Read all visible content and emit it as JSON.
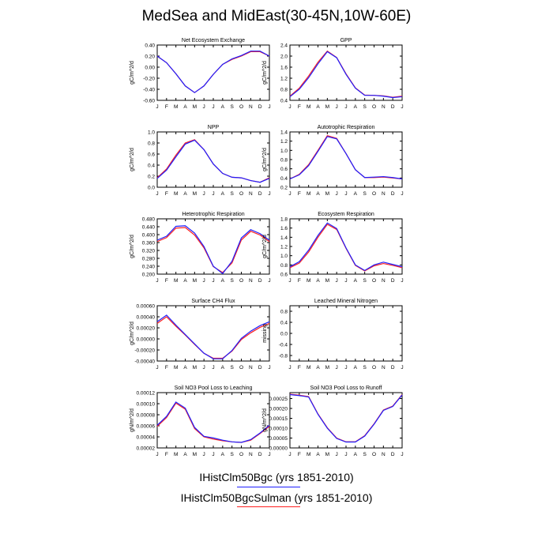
{
  "title": "MedSea and MidEast(30-45N,10W-60E)",
  "months": [
    "J",
    "F",
    "M",
    "A",
    "M",
    "J",
    "J",
    "A",
    "S",
    "O",
    "N",
    "D",
    "J"
  ],
  "legend": [
    {
      "label": "IHistClm50Bgc (yrs 1851-2010)",
      "color": "#1f1fff"
    },
    {
      "label": "IHistClm50BgcSulman (yrs 1851-2010)",
      "color": "#ff2020"
    }
  ],
  "chart_data": [
    {
      "type": "line",
      "title": "Net Ecosystem Exchange",
      "ylabel": "gC/m^2/d",
      "ylim": [
        -0.6,
        0.4
      ],
      "yticks": [
        "0.40",
        "0.20",
        "0.00",
        "-0.20",
        "-0.40",
        "-0.60"
      ],
      "series": [
        {
          "color": "#1f1fff",
          "values": [
            0.2,
            0.08,
            -0.12,
            -0.34,
            -0.46,
            -0.34,
            -0.13,
            0.05,
            0.15,
            0.21,
            0.29,
            0.29,
            0.2
          ]
        },
        {
          "color": "#ff2020",
          "values": [
            0.2,
            0.08,
            -0.12,
            -0.34,
            -0.46,
            -0.34,
            -0.13,
            0.05,
            0.14,
            0.2,
            0.28,
            0.28,
            0.2
          ]
        }
      ]
    },
    {
      "type": "line",
      "title": "GPP",
      "ylabel": "gC/m^2/d",
      "ylim": [
        0.4,
        2.4
      ],
      "yticks": [
        "2.4",
        "2.0",
        "1.6",
        "1.2",
        "0.8",
        "0.4"
      ],
      "series": [
        {
          "color": "#1f1fff",
          "values": [
            0.53,
            0.8,
            1.22,
            1.72,
            2.16,
            1.94,
            1.34,
            0.84,
            0.58,
            0.58,
            0.55,
            0.5,
            0.53
          ]
        },
        {
          "color": "#ff2020",
          "values": [
            0.55,
            0.84,
            1.28,
            1.78,
            2.18,
            1.95,
            1.36,
            0.85,
            0.59,
            0.58,
            0.56,
            0.51,
            0.55
          ]
        }
      ]
    },
    {
      "type": "line",
      "title": "NPP",
      "ylabel": "gC/m^2/d",
      "ylim": [
        0.0,
        1.0
      ],
      "yticks": [
        "1.0",
        "0.8",
        "0.6",
        "0.4",
        "0.2",
        "0.0"
      ],
      "series": [
        {
          "color": "#1f1fff",
          "values": [
            0.16,
            0.31,
            0.55,
            0.78,
            0.85,
            0.68,
            0.42,
            0.25,
            0.18,
            0.17,
            0.12,
            0.09,
            0.16
          ]
        },
        {
          "color": "#ff2020",
          "values": [
            0.17,
            0.33,
            0.58,
            0.8,
            0.86,
            0.68,
            0.42,
            0.25,
            0.18,
            0.17,
            0.12,
            0.09,
            0.17
          ]
        }
      ]
    },
    {
      "type": "line",
      "title": "Autotrophic Respiration",
      "ylabel": "gC/m^2/d",
      "ylim": [
        0.2,
        1.4
      ],
      "yticks": [
        "1.4",
        "1.2",
        "1.0",
        "0.8",
        "0.6",
        "0.4",
        "0.2"
      ],
      "series": [
        {
          "color": "#1f1fff",
          "values": [
            0.38,
            0.47,
            0.67,
            0.98,
            1.3,
            1.25,
            0.93,
            0.58,
            0.41,
            0.42,
            0.43,
            0.41,
            0.38
          ]
        },
        {
          "color": "#ff2020",
          "values": [
            0.38,
            0.48,
            0.69,
            1.0,
            1.32,
            1.26,
            0.93,
            0.58,
            0.41,
            0.41,
            0.42,
            0.4,
            0.38
          ]
        }
      ]
    },
    {
      "type": "line",
      "title": "Heterotrophic Respiration",
      "ylabel": "gC/m^2/d",
      "ylim": [
        0.2,
        0.48
      ],
      "yticks": [
        "0.480",
        "0.440",
        "0.400",
        "0.360",
        "0.320",
        "0.280",
        "0.240",
        "0.200"
      ],
      "series": [
        {
          "color": "#1f1fff",
          "values": [
            0.372,
            0.392,
            0.442,
            0.445,
            0.408,
            0.34,
            0.24,
            0.203,
            0.265,
            0.383,
            0.425,
            0.405,
            0.372
          ]
        },
        {
          "color": "#ff2020",
          "values": [
            0.365,
            0.385,
            0.433,
            0.436,
            0.398,
            0.333,
            0.238,
            0.208,
            0.257,
            0.373,
            0.417,
            0.398,
            0.365
          ]
        }
      ]
    },
    {
      "type": "line",
      "title": "Ecosystem Respiration",
      "ylabel": "gC/m^2/d",
      "ylim": [
        0.6,
        1.8
      ],
      "yticks": [
        "1.8",
        "1.6",
        "1.4",
        "1.2",
        "1.0",
        "0.8",
        "0.6"
      ],
      "series": [
        {
          "color": "#1f1fff",
          "values": [
            0.76,
            0.87,
            1.12,
            1.44,
            1.71,
            1.59,
            1.17,
            0.8,
            0.68,
            0.8,
            0.86,
            0.81,
            0.76
          ]
        },
        {
          "color": "#ff2020",
          "values": [
            0.74,
            0.84,
            1.08,
            1.4,
            1.68,
            1.57,
            1.16,
            0.79,
            0.67,
            0.78,
            0.83,
            0.79,
            0.74
          ]
        }
      ]
    },
    {
      "type": "line",
      "title": "Surface CH4 Flux",
      "ylabel": "gC/m^2/d",
      "ylim": [
        -0.0004,
        0.0006
      ],
      "yticks": [
        "0.00060",
        "0.00040",
        "0.00020",
        "0.00000",
        "-0.00020",
        "-0.00040"
      ],
      "series": [
        {
          "color": "#1f1fff",
          "values": [
            0.00031,
            0.00043,
            0.00025,
            8e-05,
            -9e-05,
            -0.00026,
            -0.00036,
            -0.00036,
            -0.00021,
            1e-05,
            0.00014,
            0.00024,
            0.00031
          ]
        },
        {
          "color": "#ff2020",
          "values": [
            0.00028,
            0.0004,
            0.00023,
            7e-05,
            -0.0001,
            -0.00026,
            -0.00035,
            -0.00035,
            -0.00022,
            -1e-05,
            0.00011,
            0.00021,
            0.00028
          ]
        }
      ]
    },
    {
      "type": "line",
      "title": "Leached Mineral Nitrogen",
      "ylabel": "missing",
      "ylim": [
        -1.0,
        1.0
      ],
      "yticks": [
        "0.8",
        "0.4",
        "0.0",
        "-0.4",
        "-0.8"
      ],
      "series": []
    },
    {
      "type": "line",
      "title": "Soil NO3 Pool Loss to Leaching",
      "ylabel": "gN/m^2/d",
      "ylim": [
        2e-05,
        0.00012
      ],
      "yticks": [
        "0.00012",
        "0.00010",
        "0.00008",
        "0.00006",
        "0.00004",
        "0.00002"
      ],
      "series": [
        {
          "color": "#1f1fff",
          "values": [
            6.1e-05,
            7.7e-05,
            0.000103,
            9.2e-05,
            5.7e-05,
            4.1e-05,
            3.8e-05,
            3.4e-05,
            3.1e-05,
            3e-05,
            3.5e-05,
            4.7e-05,
            6.1e-05
          ]
        },
        {
          "color": "#ff2020",
          "values": [
            5.9e-05,
            7.5e-05,
            0.000101,
            9e-05,
            5.5e-05,
            4e-05,
            3.6e-05,
            3.3e-05,
            3.1e-05,
            3e-05,
            3.4e-05,
            4.6e-05,
            5.9e-05
          ]
        }
      ]
    },
    {
      "type": "line",
      "title": "Soil NO3 Pool Loss to Runoff",
      "ylabel": "gN/m^2/d",
      "ylim": [
        0.0,
        0.00028
      ],
      "yticks": [
        "0.00025",
        "0.00020",
        "0.00015",
        "0.00010",
        "0.00005",
        "0.00000"
      ],
      "series": [
        {
          "color": "#1f1fff",
          "values": [
            0.00027,
            0.000265,
            0.000258,
            0.00017,
            0.0001,
            4.8e-05,
            3e-05,
            3e-05,
            6e-05,
            0.00012,
            0.00019,
            0.00021,
            0.000268
          ]
        },
        {
          "color": "#ff2020",
          "values": [
            0.000272,
            0.000267,
            0.00026,
            0.000172,
            0.000102,
            5e-05,
            3.1e-05,
            3.1e-05,
            6.2e-05,
            0.000122,
            0.000192,
            0.000212,
            0.00027
          ]
        }
      ]
    }
  ]
}
